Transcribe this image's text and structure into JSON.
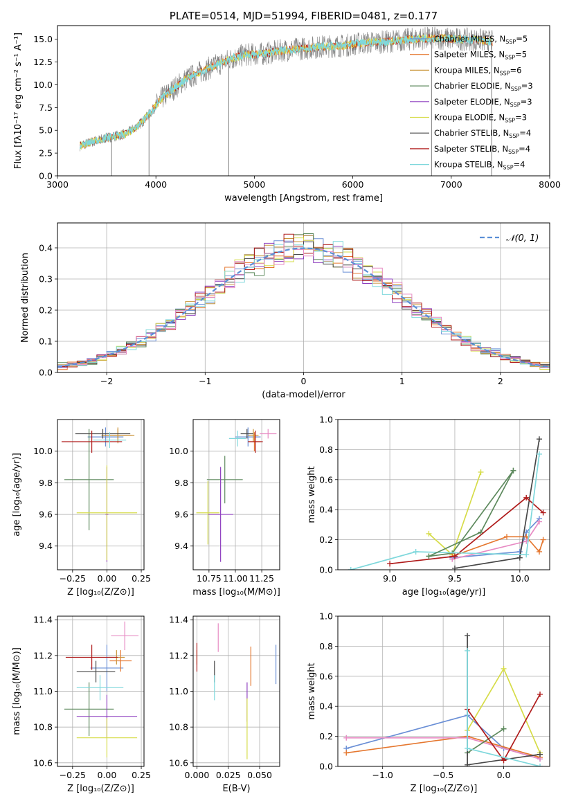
{
  "colors": {
    "Chabrier MILES": "#6a8fd6",
    "Salpeter MILES": "#e5772f",
    "Kroupa MILES": "#c9953a",
    "Chabrier ELODIE": "#5e8a5e",
    "Salpeter ELODIE": "#8e3fbf",
    "Kroupa ELODIE": "#d6dc48",
    "Chabrier STELIB": "#474747",
    "Salpeter STELIB": "#b01c1c",
    "Kroupa STELIB": "#7fd8dc",
    "pink": "#e78ac3",
    "normal_curve": "#5b8fd6",
    "spectrum": "#7f7f7f"
  },
  "chart_data": [
    {
      "id": "spectrum",
      "type": "line",
      "title": "PLATE=0514, MJD=51994, FIBERID=0481, z=0.177",
      "xlabel": "wavelength [Angstrom, rest frame]",
      "ylabel": "Flux [fλ10⁻¹⁷ erg cm⁻² s⁻¹ A⁻¹]",
      "xlim": [
        3000,
        8000
      ],
      "ylim": [
        0,
        16.5
      ],
      "xticks": [
        "3000",
        "4000",
        "5000",
        "6000",
        "7000",
        "8000"
      ],
      "yticks": [
        "0.0",
        "2.5",
        "5.0",
        "7.5",
        "10.0",
        "12.5",
        "15.0"
      ],
      "legend_position": "top-right",
      "legend": [
        {
          "label": "Chabrier MILES, N",
          "sub": "SSP",
          "tail": "=5"
        },
        {
          "label": "Salpeter MILES, N",
          "sub": "SSP",
          "tail": "=5"
        },
        {
          "label": "Kroupa MILES, N",
          "sub": "SSP",
          "tail": "=6"
        },
        {
          "label": "Chabrier ELODIE, N",
          "sub": "SSP",
          "tail": "=3"
        },
        {
          "label": "Salpeter ELODIE, N",
          "sub": "SSP",
          "tail": "=3"
        },
        {
          "label": "Kroupa ELODIE, N",
          "sub": "SSP",
          "tail": "=3"
        },
        {
          "label": "Chabrier STELIB, N",
          "sub": "SSP",
          "tail": "=4"
        },
        {
          "label": "Salpeter STELIB, N",
          "sub": "SSP",
          "tail": "=4"
        },
        {
          "label": "Kroupa STELIB, N",
          "sub": "SSP",
          "tail": "=4"
        }
      ],
      "continuum": {
        "x": [
          3230,
          3400,
          3550,
          3700,
          3850,
          3950,
          4050,
          4150,
          4300,
          4450,
          4600,
          4750,
          4900,
          5100,
          5300,
          5500,
          5700,
          5900,
          6100,
          6300,
          6500,
          6700,
          6900,
          7100,
          7300,
          7420
        ],
        "y": [
          3.3,
          3.9,
          4.3,
          4.6,
          5.8,
          7.0,
          8.4,
          9.3,
          10.6,
          11.4,
          12.1,
          12.8,
          13.3,
          13.4,
          13.8,
          14.0,
          14.2,
          14.3,
          14.6,
          14.7,
          14.9,
          15.1,
          15.1,
          15.0,
          14.9,
          14.7
        ]
      },
      "dips": [
        {
          "x": 3550,
          "y": 0.0
        },
        {
          "x": 3930,
          "y": 0.0
        },
        {
          "x": 4740,
          "y": 0.0
        },
        {
          "x": 6800,
          "y": 0.0
        },
        {
          "x": 7410,
          "y": 0.0
        }
      ]
    },
    {
      "id": "residuals",
      "type": "histogram",
      "xlabel": "(data-model)/error",
      "ylabel": "Normed distribution",
      "xlim": [
        -2.5,
        2.5
      ],
      "ylim": [
        0,
        0.48
      ],
      "xticks": [
        "−2",
        "−1",
        "0",
        "1",
        "2"
      ],
      "yticks": [
        "0.0",
        "0.1",
        "0.2",
        "0.3",
        "0.4"
      ],
      "bin_width": 0.1,
      "legend": "𝒩(0, 1)",
      "legend_position": "top-right",
      "grid": true
    },
    {
      "id": "age-vs-Z",
      "type": "errorbar",
      "xlabel": "Z [log₁₀(Z/Z⊙)]",
      "ylabel": "age  [log₁₀(age/yr)]",
      "xlim": [
        -0.36,
        0.27
      ],
      "ylim": [
        9.25,
        10.2
      ],
      "xticks": [
        "−0.25",
        "0.00",
        "0.25"
      ],
      "yticks": [
        "9.4",
        "9.6",
        "9.8",
        "10.0"
      ],
      "points": [
        {
          "model": "Chabrier MILES",
          "x": -0.01,
          "xerr": 0.13,
          "y": 10.09,
          "yerr": 0.06
        },
        {
          "model": "Salpeter MILES",
          "x": 0.08,
          "xerr": 0.1,
          "y": 10.1,
          "yerr": 0.04
        },
        {
          "model": "Kroupa MILES",
          "x": 0.08,
          "xerr": 0.12,
          "y": 10.1,
          "yerr": 0.05
        },
        {
          "model": "Chabrier ELODIE",
          "x": -0.13,
          "xerr": 0.18,
          "y": 9.82,
          "yerr": 0.32
        },
        {
          "model": "Salpeter ELODIE",
          "x": 0.0,
          "xerr": 0.01,
          "y": 9.6,
          "yerr": 0.3
        },
        {
          "model": "Kroupa ELODIE",
          "x": -0.0,
          "xerr": 0.22,
          "y": 9.61,
          "yerr": 0.3
        },
        {
          "model": "Chabrier STELIB",
          "x": -0.03,
          "xerr": 0.2,
          "y": 10.11,
          "yerr": 0.03
        },
        {
          "model": "Salpeter STELIB",
          "x": -0.11,
          "xerr": 0.22,
          "y": 10.06,
          "yerr": 0.07
        },
        {
          "model": "Kroupa STELIB",
          "x": 0.02,
          "xerr": 0.12,
          "y": 10.07,
          "yerr": 0.05
        }
      ]
    },
    {
      "id": "age-vs-mass",
      "type": "errorbar",
      "xlabel": "mass [log₁₀(M/M⊙)]",
      "ylabel": "",
      "xlim": [
        10.6,
        11.42
      ],
      "ylim": [
        9.25,
        10.2
      ],
      "xticks": [
        "10.75",
        "11.00",
        "11.25"
      ],
      "yticks": [
        "9.4",
        "9.6",
        "9.8",
        "10.0"
      ],
      "points": [
        {
          "model": "Chabrier MILES",
          "x": 11.12,
          "xerr": 0.12,
          "y": 10.09,
          "yerr": 0.06
        },
        {
          "model": "Salpeter MILES",
          "x": 11.18,
          "xerr": 0.06,
          "y": 10.06,
          "yerr": 0.06
        },
        {
          "model": "Kroupa MILES",
          "x": 11.17,
          "xerr": 0.05,
          "y": 10.1,
          "yerr": 0.04
        },
        {
          "model": "Chabrier ELODIE",
          "x": 10.9,
          "xerr": 0.17,
          "y": 9.82,
          "yerr": 0.15
        },
        {
          "model": "Salpeter ELODIE",
          "x": 10.86,
          "xerr": 0.12,
          "y": 9.6,
          "yerr": 0.3
        },
        {
          "model": "Kroupa ELODIE",
          "x": 10.74,
          "xerr": 0.11,
          "y": 9.61,
          "yerr": 0.2
        },
        {
          "model": "Chabrier STELIB",
          "x": 11.11,
          "xerr": 0.06,
          "y": 10.11,
          "yerr": 0.03
        },
        {
          "model": "Salpeter STELIB",
          "x": 11.19,
          "xerr": 0.07,
          "y": 10.06,
          "yerr": 0.07
        },
        {
          "model": "Kroupa STELIB",
          "x": 11.02,
          "xerr": 0.08,
          "y": 10.08,
          "yerr": 0.05
        },
        {
          "model": "pink",
          "x": 11.31,
          "xerr": 0.08,
          "y": 10.11,
          "yerr": 0.03
        }
      ]
    },
    {
      "id": "massweight-vs-age",
      "type": "line",
      "xlabel": "age  [log₁₀(age/yr)]",
      "ylabel": "mass weight",
      "xlim": [
        8.6,
        10.23
      ],
      "ylim": [
        0,
        1
      ],
      "xticks": [
        "9.0",
        "9.5",
        "10.0"
      ],
      "yticks": [
        "0.0",
        "0.2",
        "0.4",
        "0.6",
        "0.8",
        "1.0"
      ],
      "series": [
        {
          "model": "Kroupa ELODIE",
          "x": [
            9.3,
            9.48,
            9.7
          ],
          "y": [
            0.24,
            0.1,
            0.65
          ]
        },
        {
          "model": "Chabrier ELODIE",
          "x": [
            9.3,
            9.48,
            9.95
          ],
          "y": [
            0.09,
            0.11,
            0.66
          ]
        },
        {
          "model": "Chabrier MILES",
          "x": [
            9.48,
            10.0,
            10.05,
            10.15
          ],
          "y": [
            0.08,
            0.12,
            0.25,
            0.34
          ]
        },
        {
          "model": "Salpeter MILES",
          "x": [
            9.48,
            9.9,
            10.05,
            10.15,
            10.18
          ],
          "y": [
            0.09,
            0.22,
            0.22,
            0.12,
            0.2
          ]
        },
        {
          "model": "pink",
          "x": [
            9.48,
            10.05,
            10.15
          ],
          "y": [
            0.07,
            0.19,
            0.32
          ]
        },
        {
          "model": "Chabrier STELIB",
          "x": [
            9.5,
            10.0,
            10.15
          ],
          "y": [
            0.01,
            0.08,
            0.87
          ]
        },
        {
          "model": "Salpeter STELIB",
          "x": [
            9.0,
            9.5,
            10.05,
            10.18
          ],
          "y": [
            0.04,
            0.09,
            0.48,
            0.38
          ]
        },
        {
          "model": "Kroupa STELIB",
          "x": [
            8.7,
            9.2,
            10.05,
            10.15
          ],
          "y": [
            0.0,
            0.12,
            0.1,
            0.77
          ]
        },
        {
          "model": "Chabrier ELODIE",
          "x": [
            9.3,
            9.7,
            9.95
          ],
          "y": [
            0.09,
            0.25,
            0.66
          ]
        }
      ]
    },
    {
      "id": "mass-vs-Z",
      "type": "errorbar",
      "xlabel": "Z [log₁₀(Z/Z⊙)]",
      "ylabel": "mass [log₁₀(M/M⊙)]",
      "xlim": [
        -0.36,
        0.27
      ],
      "ylim": [
        10.58,
        11.42
      ],
      "xticks": [
        "−0.25",
        "0.00",
        "0.25"
      ],
      "yticks": [
        "10.6",
        "10.8",
        "11.0",
        "11.2",
        "11.4"
      ],
      "points": [
        {
          "model": "Chabrier MILES",
          "x": 0.0,
          "xerr": 0.12,
          "y": 11.13,
          "yerr": 0.13
        },
        {
          "model": "Salpeter MILES",
          "x": 0.1,
          "xerr": 0.08,
          "y": 11.17,
          "yerr": 0.06
        },
        {
          "model": "Kroupa MILES",
          "x": 0.07,
          "xerr": 0.06,
          "y": 11.19,
          "yerr": 0.04
        },
        {
          "model": "Chabrier ELODIE",
          "x": -0.13,
          "xerr": 0.18,
          "y": 10.9,
          "yerr": 0.15
        },
        {
          "model": "Salpeter ELODIE",
          "x": 0.0,
          "xerr": 0.22,
          "y": 10.86,
          "yerr": 0.12
        },
        {
          "model": "Kroupa ELODIE",
          "x": 0.0,
          "xerr": 0.22,
          "y": 10.74,
          "yerr": 0.11
        },
        {
          "model": "Chabrier STELIB",
          "x": -0.08,
          "xerr": 0.14,
          "y": 11.11,
          "yerr": 0.06
        },
        {
          "model": "Salpeter STELIB",
          "x": -0.11,
          "xerr": 0.19,
          "y": 11.19,
          "yerr": 0.07
        },
        {
          "model": "Kroupa STELIB",
          "x": -0.05,
          "xerr": 0.17,
          "y": 11.02,
          "yerr": 0.07
        },
        {
          "model": "pink",
          "x": 0.13,
          "xerr": 0.1,
          "y": 11.31,
          "yerr": 0.08
        }
      ]
    },
    {
      "id": "mass-vs-ebv",
      "type": "errorbar",
      "xlabel": "E(B-V)",
      "ylabel": "",
      "xlim": [
        -0.003,
        0.066
      ],
      "ylim": [
        10.58,
        11.42
      ],
      "xticks": [
        "0.000",
        "0.025",
        "0.050"
      ],
      "yticks": [
        "10.6",
        "10.8",
        "11.0",
        "11.2",
        "11.4"
      ],
      "points": [
        {
          "model": "Chabrier MILES",
          "x": 0.063,
          "xerr": 0.0,
          "y": 11.15,
          "yerr": 0.11
        },
        {
          "model": "Salpeter MILES",
          "x": 0.043,
          "xerr": 0.0,
          "y": 11.14,
          "yerr": 0.11
        },
        {
          "model": "Kroupa MILES",
          "x": 0.0,
          "xerr": 0.0,
          "y": 11.19,
          "yerr": 0.04
        },
        {
          "model": "Salpeter ELODIE",
          "x": 0.04,
          "xerr": 0.0,
          "y": 10.94,
          "yerr": 0.11
        },
        {
          "model": "Kroupa ELODIE",
          "x": 0.04,
          "xerr": 0.0,
          "y": 10.79,
          "yerr": 0.17
        },
        {
          "model": "Chabrier STELIB",
          "x": 0.014,
          "xerr": 0.0,
          "y": 11.11,
          "yerr": 0.06
        },
        {
          "model": "Salpeter STELIB",
          "x": 0.0,
          "xerr": 0.0,
          "y": 11.19,
          "yerr": 0.08
        },
        {
          "model": "Kroupa STELIB",
          "x": 0.014,
          "xerr": 0.0,
          "y": 11.02,
          "yerr": 0.07
        },
        {
          "model": "pink",
          "x": 0.017,
          "xerr": 0.0,
          "y": 11.3,
          "yerr": 0.08
        }
      ]
    },
    {
      "id": "massweight-vs-Z",
      "type": "line",
      "xlabel": "Z [log₁₀(Z/Z⊙)]",
      "ylabel": "mass weight",
      "xlim": [
        -1.37,
        0.38
      ],
      "ylim": [
        0,
        1
      ],
      "xticks": [
        "−1.0",
        "−0.5",
        "0.0"
      ],
      "yticks": [
        "0.0",
        "0.2",
        "0.4",
        "0.6",
        "0.8",
        "1.0"
      ],
      "series": [
        {
          "model": "Chabrier MILES",
          "x": [
            -1.3,
            -0.3,
            0.0,
            0.3
          ],
          "y": [
            0.12,
            0.34,
            0.12,
            0.05
          ]
        },
        {
          "model": "Salpeter MILES",
          "x": [
            -1.3,
            -0.3,
            0.3
          ],
          "y": [
            0.09,
            0.2,
            0.06
          ]
        },
        {
          "model": "pink",
          "x": [
            -1.3,
            -0.3,
            0.3
          ],
          "y": [
            0.19,
            0.19,
            0.05
          ]
        },
        {
          "model": "Kroupa ELODIE",
          "x": [
            -0.3,
            0.0,
            0.3
          ],
          "y": [
            0.24,
            0.65,
            0.09
          ]
        },
        {
          "model": "Chabrier ELODIE",
          "x": [
            -0.3,
            0.0
          ],
          "y": [
            0.09,
            0.25
          ]
        },
        {
          "model": "Chabrier STELIB",
          "x": [
            -0.3,
            -0.3,
            0.3
          ],
          "y": [
            0.87,
            0.01,
            0.08
          ]
        },
        {
          "model": "Salpeter STELIB",
          "x": [
            -0.3,
            0.0,
            0.3
          ],
          "y": [
            0.38,
            0.04,
            0.48
          ]
        },
        {
          "model": "Kroupa STELIB",
          "x": [
            -0.3,
            -0.3,
            0.3
          ],
          "y": [
            0.77,
            0.12,
            0.0
          ]
        }
      ]
    }
  ]
}
